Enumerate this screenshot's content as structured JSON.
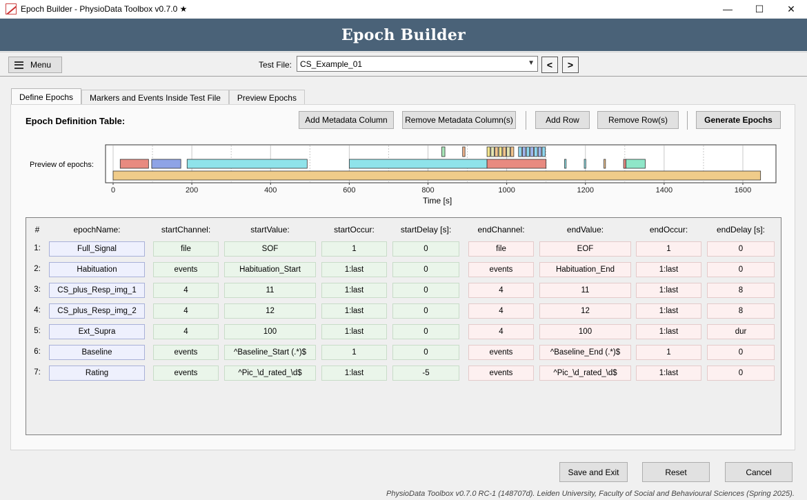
{
  "window": {
    "title": "Epoch Builder - PhysioData Toolbox v0.7.0 ★",
    "minimize": "—",
    "maximize": "☐",
    "close": "✕"
  },
  "banner": {
    "title": "Epoch Builder"
  },
  "toolbar": {
    "menu_label": "Menu",
    "test_file_label": "Test File:",
    "test_file_value": "CS_Example_01",
    "prev_label": "<",
    "next_label": ">"
  },
  "tabs": [
    {
      "label": "Define Epochs",
      "active": true
    },
    {
      "label": "Markers and Events Inside Test File",
      "active": false
    },
    {
      "label": "Preview Epochs",
      "active": false
    }
  ],
  "panel": {
    "title": "Epoch Definition Table:",
    "buttons": {
      "add_metadata": "Add Metadata Column",
      "remove_metadata": "Remove Metadata Column(s)",
      "add_row": "Add Row",
      "remove_row": "Remove Row(s)",
      "generate": "Generate Epochs"
    }
  },
  "preview": {
    "label": "Preview of epochs:",
    "axis_title": "Time [s]",
    "xlim": [
      0,
      1700
    ],
    "ticks": [
      0,
      200,
      400,
      600,
      800,
      1000,
      1200,
      1400,
      1600
    ],
    "epochs_row2": [
      {
        "start": 18,
        "end": 90,
        "color": "#e88a80"
      },
      {
        "start": 98,
        "end": 172,
        "color": "#8ea3e6"
      },
      {
        "start": 188,
        "end": 493,
        "color": "#8fe3ea"
      },
      {
        "start": 600,
        "end": 950,
        "color": "#8fe3ea"
      },
      {
        "start": 950,
        "end": 1100,
        "color": "#e88a80"
      },
      {
        "start": 1147,
        "end": 1151,
        "color": "#8fe3ea"
      },
      {
        "start": 1197,
        "end": 1201,
        "color": "#8fe3ea"
      },
      {
        "start": 1247,
        "end": 1251,
        "color": "#f2c48c"
      },
      {
        "start": 1297,
        "end": 1303,
        "color": "#e88a80"
      },
      {
        "start": 1303,
        "end": 1352,
        "color": "#8fe6c8"
      }
    ],
    "epochs_row1": [
      {
        "start": 835,
        "end": 843,
        "color": "#a8e6b8"
      },
      {
        "start": 888,
        "end": 894,
        "color": "#f2b48c"
      },
      {
        "start": 950,
        "end": 958,
        "color": "#f2e48c"
      },
      {
        "start": 960,
        "end": 968,
        "color": "#e6e6b0"
      },
      {
        "start": 970,
        "end": 978,
        "color": "#f2c48c"
      },
      {
        "start": 980,
        "end": 988,
        "color": "#f2e48c"
      },
      {
        "start": 990,
        "end": 998,
        "color": "#f2c48c"
      },
      {
        "start": 1000,
        "end": 1008,
        "color": "#e6e6b0"
      },
      {
        "start": 1010,
        "end": 1018,
        "color": "#f2c48c"
      },
      {
        "start": 1030,
        "end": 1038,
        "color": "#8fd8f0"
      },
      {
        "start": 1040,
        "end": 1048,
        "color": "#a0b8f0"
      },
      {
        "start": 1050,
        "end": 1058,
        "color": "#8fd8f0"
      },
      {
        "start": 1060,
        "end": 1068,
        "color": "#a0b8f0"
      },
      {
        "start": 1070,
        "end": 1078,
        "color": "#8fd8f0"
      },
      {
        "start": 1080,
        "end": 1088,
        "color": "#a0b8f0"
      },
      {
        "start": 1090,
        "end": 1098,
        "color": "#8fd8f0"
      }
    ],
    "full_signal": {
      "start": 0,
      "end": 1645,
      "color": "#f0cc8a"
    }
  },
  "table": {
    "headers": [
      "#",
      "epochName:",
      "startChannel:",
      "startValue:",
      "startOccur:",
      "startDelay [s]:",
      "endChannel:",
      "endValue:",
      "endOccur:",
      "endDelay [s]:"
    ],
    "rows": [
      {
        "num": "1:",
        "cells": [
          "Full_Signal",
          "file",
          "SOF",
          "1",
          "0",
          "file",
          "EOF",
          "1",
          "0"
        ]
      },
      {
        "num": "2:",
        "cells": [
          "Habituation",
          "events",
          "Habituation_Start",
          "1:last",
          "0",
          "events",
          "Habituation_End",
          "1:last",
          "0"
        ]
      },
      {
        "num": "3:",
        "cells": [
          "CS_plus_Resp_img_1",
          "4",
          "11",
          "1:last",
          "0",
          "4",
          "11",
          "1:last",
          "8"
        ]
      },
      {
        "num": "4:",
        "cells": [
          "CS_plus_Resp_img_2",
          "4",
          "12",
          "1:last",
          "0",
          "4",
          "12",
          "1:last",
          "8"
        ]
      },
      {
        "num": "5:",
        "cells": [
          "Ext_Supra",
          "4",
          "100",
          "1:last",
          "0",
          "4",
          "100",
          "1:last",
          "dur"
        ]
      },
      {
        "num": "6:",
        "cells": [
          "Baseline",
          "events",
          "^Baseline_Start (.*)$",
          "1",
          "0",
          "events",
          "^Baseline_End (.*)$",
          "1",
          "0"
        ]
      },
      {
        "num": "7:",
        "cells": [
          "Rating",
          "events",
          "^Pic_\\d_rated_\\d$",
          "1:last",
          "-5",
          "events",
          "^Pic_\\d_rated_\\d$",
          "1:last",
          "0"
        ]
      }
    ]
  },
  "bottom": {
    "save_exit": "Save and Exit",
    "reset": "Reset",
    "cancel": "Cancel",
    "footer": "PhysioData Toolbox v0.7.0 RC-1 (148707d). Leiden University, Faculty of Social and Behavioural Sciences (Spring 2025)."
  }
}
